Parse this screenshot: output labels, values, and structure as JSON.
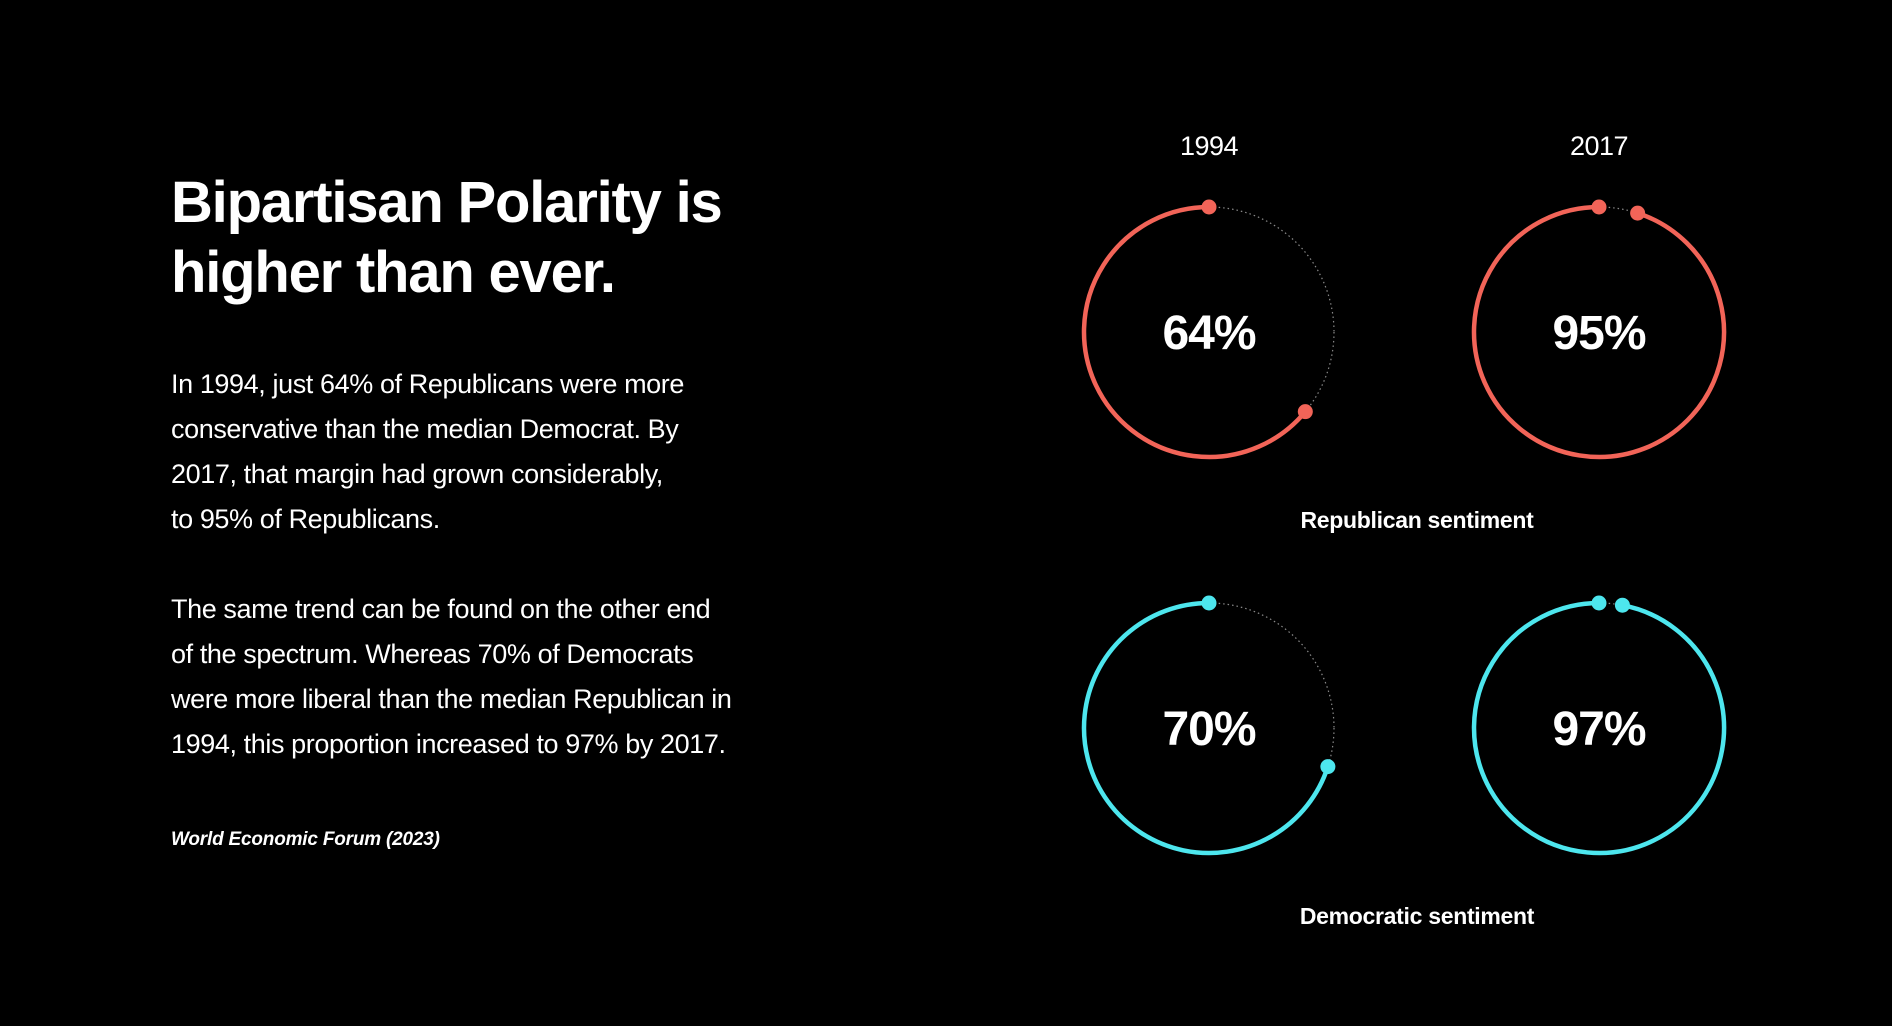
{
  "headline": "Bipartisan Polarity is higher than ever.",
  "paragraphs": [
    "In 1994, just 64% of Republicans were more\nconservative than the median Democrat. By\n2017, that margin had grown considerably,\nto 95% of Republicans.",
    "The same trend can be found on the other end\nof the spectrum. Whereas 70% of Democrats\nwere more liberal than the median Republican in\n1994, this proportion increased to 97% by 2017."
  ],
  "source": "World Economic Forum (2023)",
  "colors": {
    "background": "#000000",
    "text": "#ffffff",
    "republican": "#f26458",
    "democratic": "#4de6ee",
    "track": "#8a8a8a"
  },
  "chart_data": {
    "type": "donut-progress",
    "years": [
      "1994",
      "2017"
    ],
    "groups": [
      {
        "name": "Republican sentiment",
        "color_key": "republican",
        "values": [
          64,
          95
        ],
        "labels": [
          "64%",
          "95%"
        ]
      },
      {
        "name": "Democratic sentiment",
        "color_key": "democratic",
        "values": [
          70,
          97
        ],
        "labels": [
          "70%",
          "97%"
        ]
      }
    ],
    "unit": "%",
    "max": 100
  }
}
